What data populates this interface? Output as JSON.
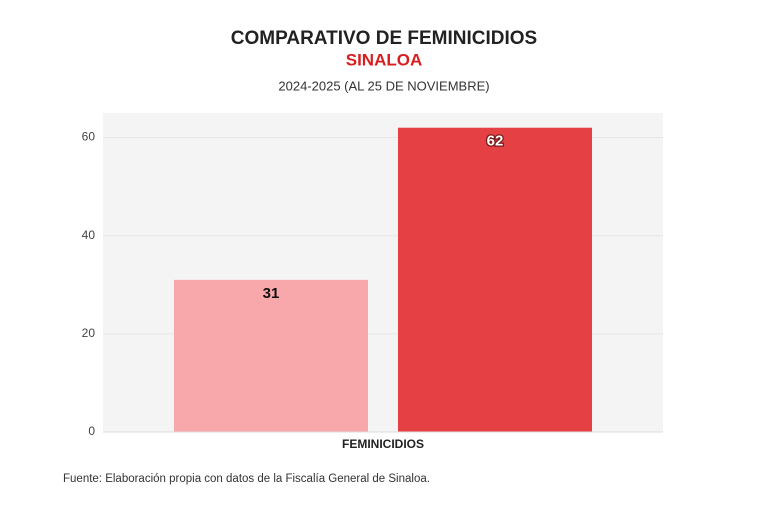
{
  "chart_data": {
    "type": "bar",
    "title": "COMPARATIVO DE FEMINICIDIOS",
    "subtitle": "SINALOA",
    "period": "2024-2025 (AL 25 DE NOVIEMBRE)",
    "categories": [
      "FEMINICIDIOS"
    ],
    "series": [
      {
        "color": "#f8a8aa",
        "values": [
          31
        ]
      },
      {
        "color": "#e54144",
        "values": [
          62
        ]
      }
    ],
    "ylim": [
      0,
      65
    ],
    "yticks": [
      0,
      20,
      40,
      60
    ],
    "grid": true,
    "source": "Fuente: Elaboración propia con datos de la Fiscalía General de Sinaloa."
  }
}
